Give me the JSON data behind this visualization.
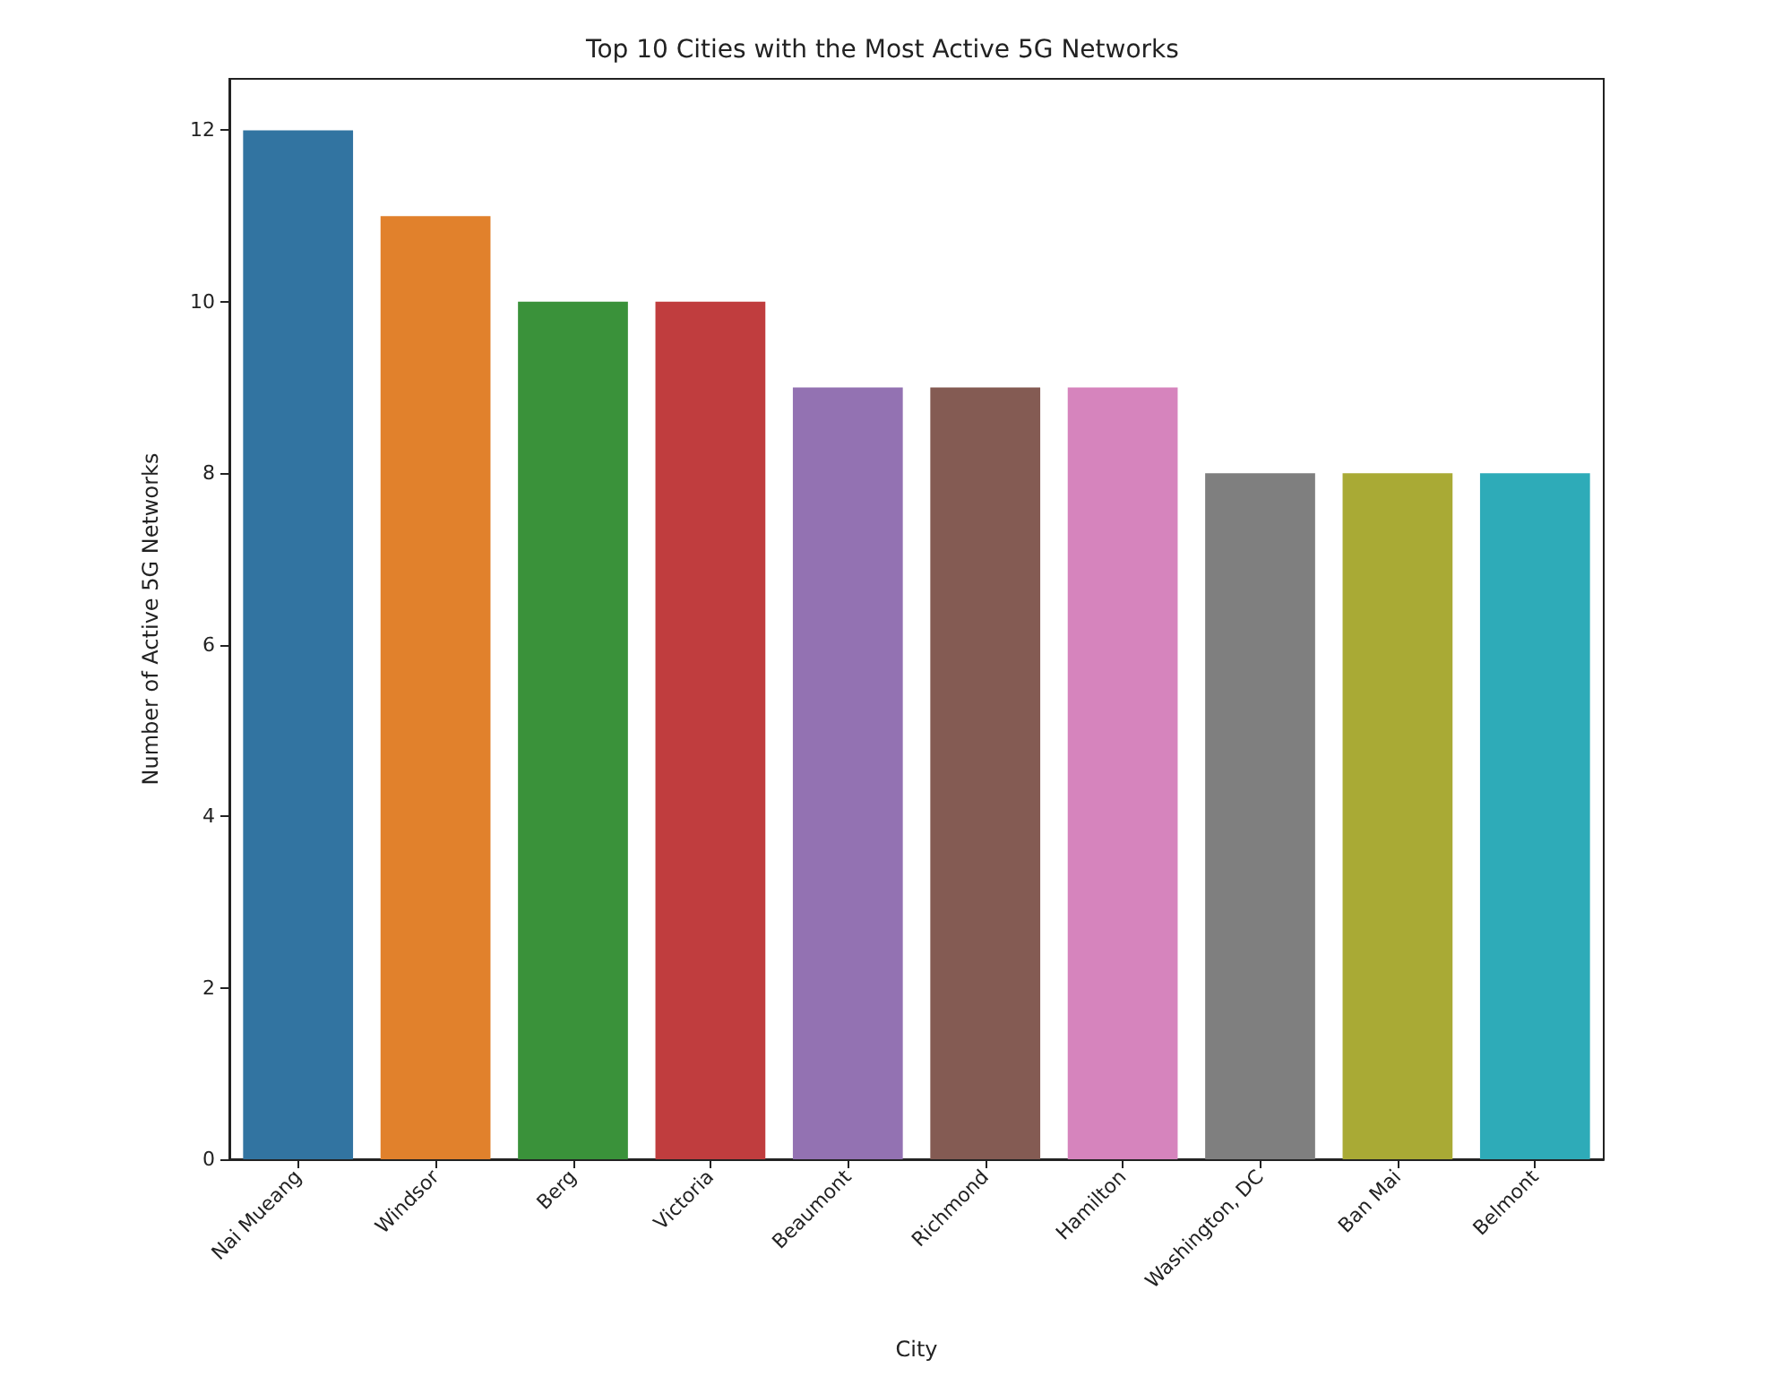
{
  "chart_data": {
    "type": "bar",
    "title": "Top 10 Cities with the Most Active 5G Networks",
    "xlabel": "City",
    "ylabel": "Number of Active 5G Networks",
    "categories": [
      "Nai Mueang",
      "Windsor",
      "Berg",
      "Victoria",
      "Beaumont",
      "Richmond",
      "Hamilton",
      "Washington, DC",
      "Ban Mai",
      "Belmont"
    ],
    "values": [
      12,
      11,
      10,
      10,
      9,
      9,
      9,
      8,
      8,
      8
    ],
    "colors": [
      "#3274a1",
      "#e1812c",
      "#3a923a",
      "#c03d3e",
      "#9372b2",
      "#845b53",
      "#d684bd",
      "#7f7f7f",
      "#a9aa35",
      "#2eabb8"
    ],
    "ylim": [
      0,
      12.6
    ],
    "yticks": [
      0,
      2,
      4,
      6,
      8,
      10,
      12
    ]
  }
}
